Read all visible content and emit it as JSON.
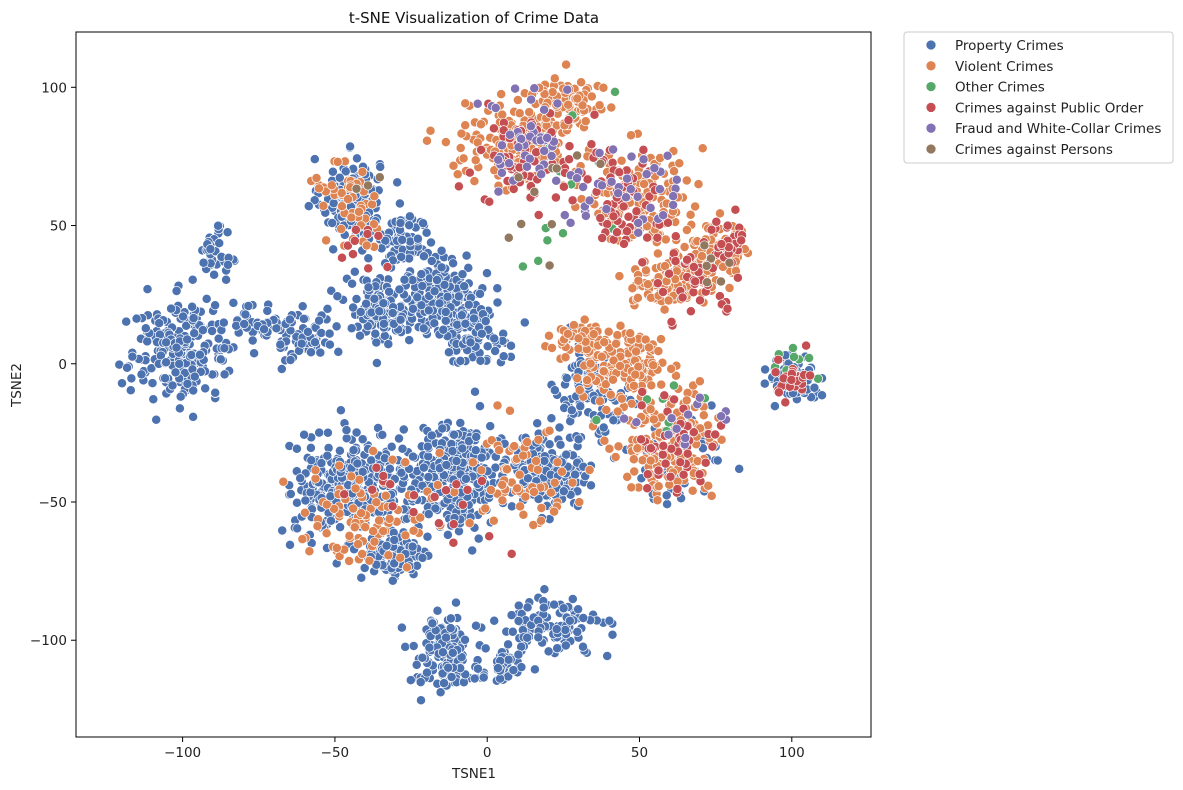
{
  "chart_data": {
    "type": "scatter",
    "title": "t-SNE Visualization of Crime Data",
    "xlabel": "TSNE1",
    "ylabel": "TSNE2",
    "xlim": [
      -135,
      126
    ],
    "ylim": [
      -135,
      120
    ],
    "xticks": [
      -100,
      -50,
      0,
      50,
      100
    ],
    "xtick_labels": [
      "−100",
      "−50",
      "0",
      "50",
      "100"
    ],
    "yticks": [
      -100,
      -50,
      0,
      50,
      100
    ],
    "ytick_labels": [
      "−100",
      "−50",
      "0",
      "50",
      "100"
    ],
    "grid": false,
    "legend_position": "outside-top-right",
    "series": [
      {
        "name": "Property Crimes",
        "color": "#4c72b0",
        "regions": [
          {
            "center": [
              -45,
              60
            ],
            "spread": [
              8,
              12
            ],
            "count": 170
          },
          {
            "center": [
              -28,
              45
            ],
            "spread": [
              8,
              8
            ],
            "count": 70
          },
          {
            "center": [
              -15,
              25
            ],
            "spread": [
              12,
              12
            ],
            "count": 200
          },
          {
            "center": [
              -35,
              20
            ],
            "spread": [
              10,
              10
            ],
            "count": 130
          },
          {
            "center": [
              -5,
              10
            ],
            "spread": [
              10,
              8
            ],
            "count": 90
          },
          {
            "center": [
              -60,
              10
            ],
            "spread": [
              8,
              8
            ],
            "count": 60
          },
          {
            "center": [
              -75,
              15
            ],
            "spread": [
              6,
              6
            ],
            "count": 40
          },
          {
            "center": [
              -100,
              5
            ],
            "spread": [
              15,
              15
            ],
            "count": 220
          },
          {
            "center": [
              -90,
              40
            ],
            "spread": [
              4,
              7
            ],
            "count": 35
          },
          {
            "center": [
              -45,
              -45
            ],
            "spread": [
              15,
              15
            ],
            "count": 330
          },
          {
            "center": [
              -10,
              -40
            ],
            "spread": [
              15,
              15
            ],
            "count": 330
          },
          {
            "center": [
              20,
              -40
            ],
            "spread": [
              10,
              12
            ],
            "count": 170
          },
          {
            "center": [
              -30,
              -70
            ],
            "spread": [
              10,
              7
            ],
            "count": 100
          },
          {
            "center": [
              -15,
              -105
            ],
            "spread": [
              8,
              12
            ],
            "count": 130
          },
          {
            "center": [
              20,
              -95
            ],
            "spread": [
              15,
              8
            ],
            "count": 110
          },
          {
            "center": [
              5,
              -110
            ],
            "spread": [
              6,
              5
            ],
            "count": 45
          },
          {
            "center": [
              35,
              -10
            ],
            "spread": [
              10,
              15
            ],
            "count": 110
          },
          {
            "center": [
              60,
              -35
            ],
            "spread": [
              12,
              12
            ],
            "count": 60
          },
          {
            "center": [
              100,
              -5
            ],
            "spread": [
              7,
              7
            ],
            "count": 80
          }
        ]
      },
      {
        "name": "Violent Crimes",
        "color": "#dd8452",
        "regions": [
          {
            "center": [
              10,
              80
            ],
            "spread": [
              15,
              12
            ],
            "count": 200
          },
          {
            "center": [
              25,
              95
            ],
            "spread": [
              10,
              8
            ],
            "count": 80
          },
          {
            "center": [
              50,
              60
            ],
            "spread": [
              15,
              15
            ],
            "count": 170
          },
          {
            "center": [
              60,
              30
            ],
            "spread": [
              10,
              8
            ],
            "count": 120
          },
          {
            "center": [
              75,
              40
            ],
            "spread": [
              8,
              10
            ],
            "count": 70
          },
          {
            "center": [
              45,
              0
            ],
            "spread": [
              12,
              10
            ],
            "count": 140
          },
          {
            "center": [
              60,
              -30
            ],
            "spread": [
              15,
              15
            ],
            "count": 170
          },
          {
            "center": [
              -45,
              60
            ],
            "spread": [
              10,
              12
            ],
            "count": 50
          },
          {
            "center": [
              -40,
              -55
            ],
            "spread": [
              18,
              15
            ],
            "count": 90
          },
          {
            "center": [
              10,
              -40
            ],
            "spread": [
              15,
              15
            ],
            "count": 70
          },
          {
            "center": [
              30,
              10
            ],
            "spread": [
              8,
              5
            ],
            "count": 60
          }
        ]
      },
      {
        "name": "Other Crimes",
        "color": "#55a868",
        "regions": [
          {
            "center": [
              35,
              70
            ],
            "spread": [
              20,
              20
            ],
            "count": 10
          },
          {
            "center": [
              55,
              -10
            ],
            "spread": [
              15,
              15
            ],
            "count": 8
          },
          {
            "center": [
              100,
              0
            ],
            "spread": [
              6,
              6
            ],
            "count": 8
          },
          {
            "center": [
              20,
              40
            ],
            "spread": [
              8,
              6
            ],
            "count": 3
          }
        ]
      },
      {
        "name": "Crimes against Public Order",
        "color": "#c44e52",
        "regions": [
          {
            "center": [
              15,
              75
            ],
            "spread": [
              15,
              15
            ],
            "count": 70
          },
          {
            "center": [
              45,
              60
            ],
            "spread": [
              15,
              15
            ],
            "count": 60
          },
          {
            "center": [
              70,
              30
            ],
            "spread": [
              10,
              10
            ],
            "count": 40
          },
          {
            "center": [
              80,
              45
            ],
            "spread": [
              6,
              6
            ],
            "count": 25
          },
          {
            "center": [
              60,
              -30
            ],
            "spread": [
              12,
              12
            ],
            "count": 50
          },
          {
            "center": [
              100,
              -5
            ],
            "spread": [
              7,
              7
            ],
            "count": 25
          },
          {
            "center": [
              -20,
              -50
            ],
            "spread": [
              20,
              15
            ],
            "count": 20
          },
          {
            "center": [
              -40,
              40
            ],
            "spread": [
              10,
              15
            ],
            "count": 10
          }
        ]
      },
      {
        "name": "Fraud and White-Collar Crimes",
        "color": "#8172b3",
        "regions": [
          {
            "center": [
              15,
              80
            ],
            "spread": [
              15,
              15
            ],
            "count": 45
          },
          {
            "center": [
              50,
              65
            ],
            "spread": [
              15,
              15
            ],
            "count": 30
          },
          {
            "center": [
              60,
              -20
            ],
            "spread": [
              12,
              12
            ],
            "count": 15
          },
          {
            "center": [
              30,
              55
            ],
            "spread": [
              8,
              8
            ],
            "count": 8
          }
        ]
      },
      {
        "name": "Crimes against Persons",
        "color": "#937860",
        "regions": [
          {
            "center": [
              20,
              60
            ],
            "spread": [
              15,
              15
            ],
            "count": 10
          },
          {
            "center": [
              75,
              35
            ],
            "spread": [
              8,
              8
            ],
            "count": 6
          },
          {
            "center": [
              -40,
              65
            ],
            "spread": [
              6,
              6
            ],
            "count": 3
          }
        ]
      }
    ]
  }
}
